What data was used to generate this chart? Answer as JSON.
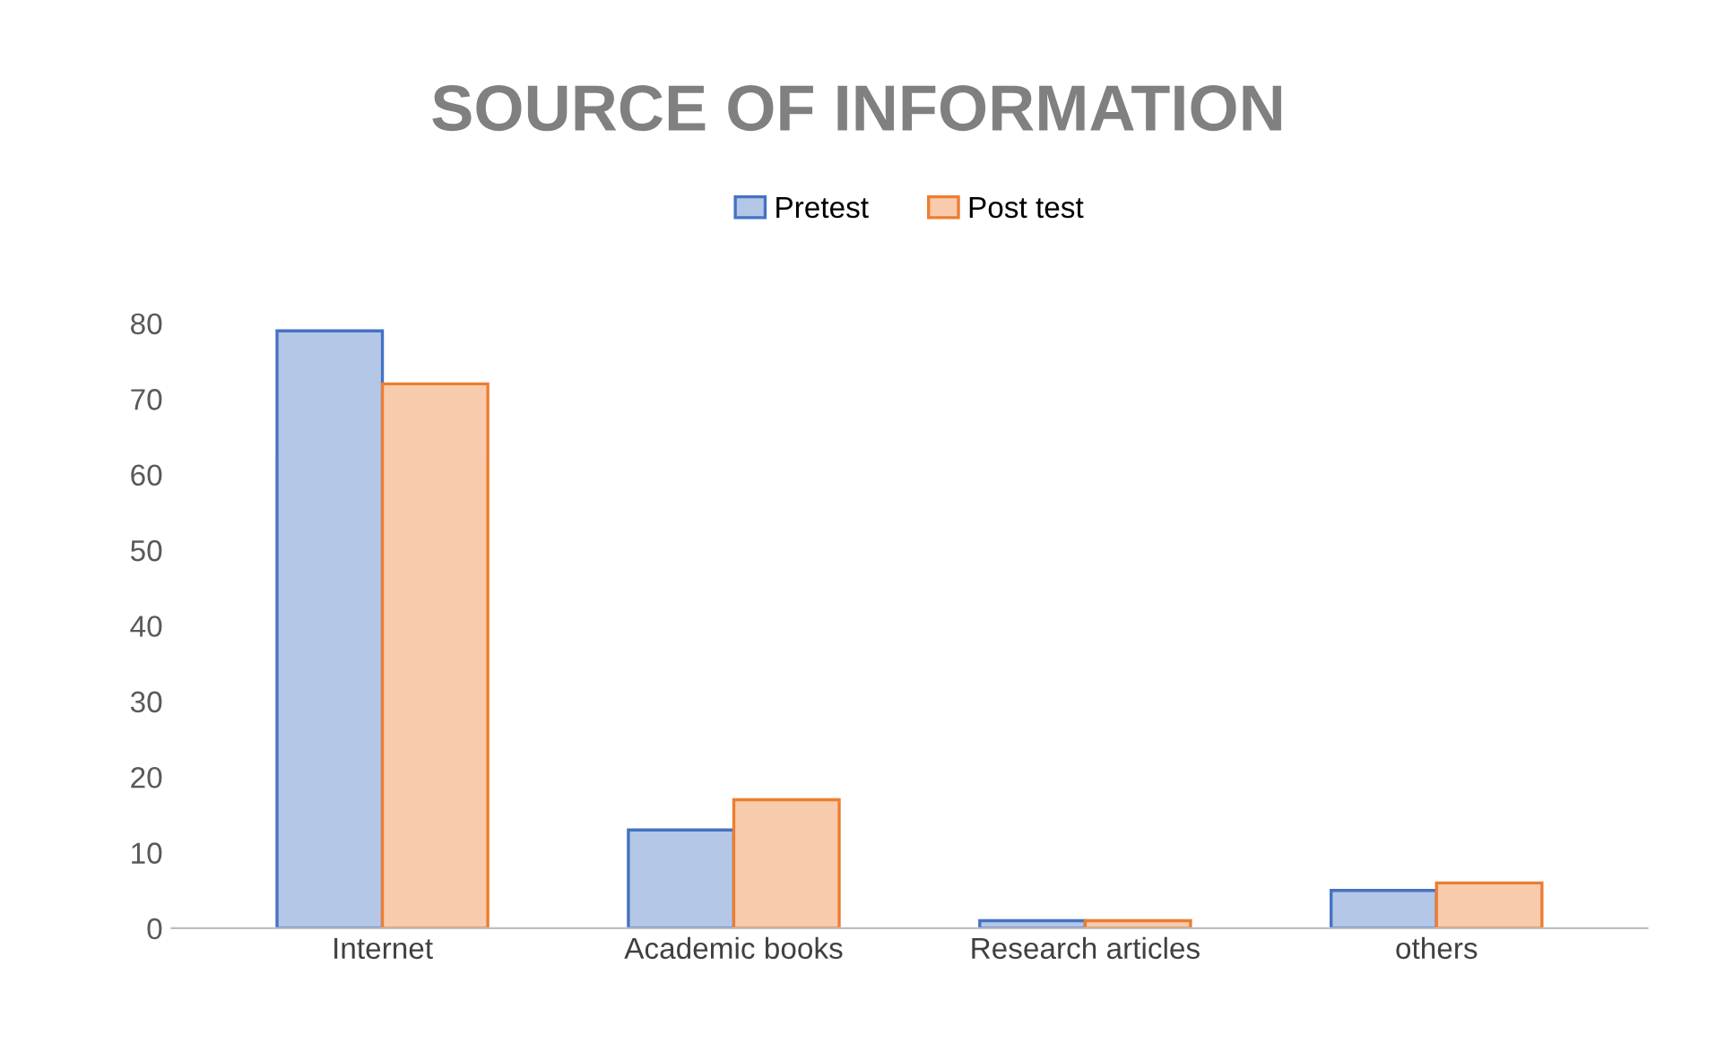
{
  "chart_data": {
    "type": "bar",
    "title": "SOURCE OF INFORMATION",
    "categories": [
      "Internet",
      "Academic books",
      "Research articles",
      "others"
    ],
    "series": [
      {
        "name": "Pretest",
        "color": "#4472c4",
        "values": [
          79,
          13,
          1,
          5
        ]
      },
      {
        "name": "Post test",
        "color": "#ed7d31",
        "values": [
          72,
          17,
          1,
          6
        ]
      }
    ],
    "ylim": [
      0,
      80
    ],
    "yticks": [
      0,
      10,
      20,
      30,
      40,
      50,
      60,
      70,
      80
    ],
    "grid": false,
    "legend": "top"
  }
}
